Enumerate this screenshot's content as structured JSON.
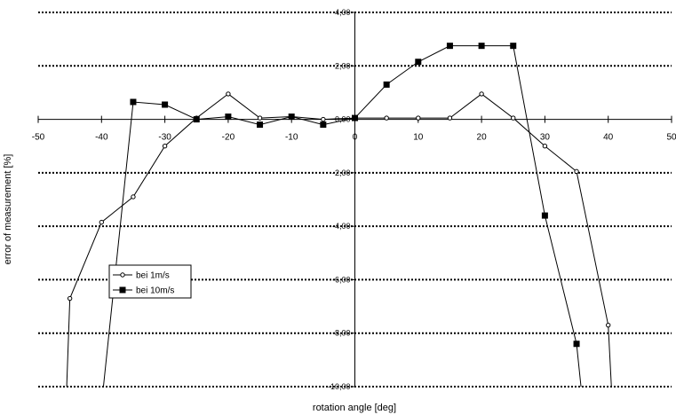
{
  "chart_data": {
    "type": "line",
    "xlabel": "rotation angle [deg]",
    "ylabel": "error of measurement [%]",
    "xlim": [
      -50,
      50
    ],
    "ylim": [
      -10,
      4
    ],
    "x_ticks": [
      -50,
      -40,
      -30,
      -20,
      -10,
      0,
      10,
      20,
      30,
      40,
      50
    ],
    "x_tick_labels": [
      "-50",
      "-40",
      "-30",
      "-20",
      "-10",
      "0",
      "10",
      "20",
      "30",
      "40",
      "50"
    ],
    "y_ticks": [
      4,
      2,
      0,
      -2,
      -4,
      -6,
      -8,
      -10
    ],
    "y_tick_labels": [
      "4,00",
      "2,00",
      "0,00",
      "-2,00",
      "-4,00",
      "-6,00",
      "-8,00",
      "-10,00"
    ],
    "grid": "horizontal dotted",
    "legend_position": "lower-left",
    "series": [
      {
        "name": "bei 1m/s",
        "marker": "open-circle",
        "color": "#000000",
        "x": [
          -45.5,
          -45,
          -40,
          -35,
          -30,
          -25,
          -20,
          -15,
          -10,
          -5,
          0,
          5,
          10,
          15,
          20,
          25,
          30,
          35,
          40,
          40.5
        ],
        "y": [
          -10,
          -6.7,
          -3.85,
          -2.9,
          -1.0,
          0.05,
          0.95,
          0.05,
          0.1,
          0.0,
          0.05,
          0.05,
          0.05,
          0.05,
          0.95,
          0.05,
          -1.0,
          -1.95,
          -7.7,
          -10
        ]
      },
      {
        "name": "bei 10m/s",
        "marker": "filled-square",
        "color": "#000000",
        "x": [
          -39.7,
          -35,
          -30,
          -25,
          -20,
          -15,
          -10,
          -5,
          0,
          5,
          10,
          15,
          20,
          25,
          30,
          35,
          35.7
        ],
        "y": [
          -10,
          0.65,
          0.55,
          0.0,
          0.1,
          -0.2,
          0.1,
          -0.2,
          0.05,
          1.3,
          2.15,
          2.75,
          2.75,
          2.75,
          -3.6,
          -8.4,
          -10
        ]
      }
    ]
  }
}
